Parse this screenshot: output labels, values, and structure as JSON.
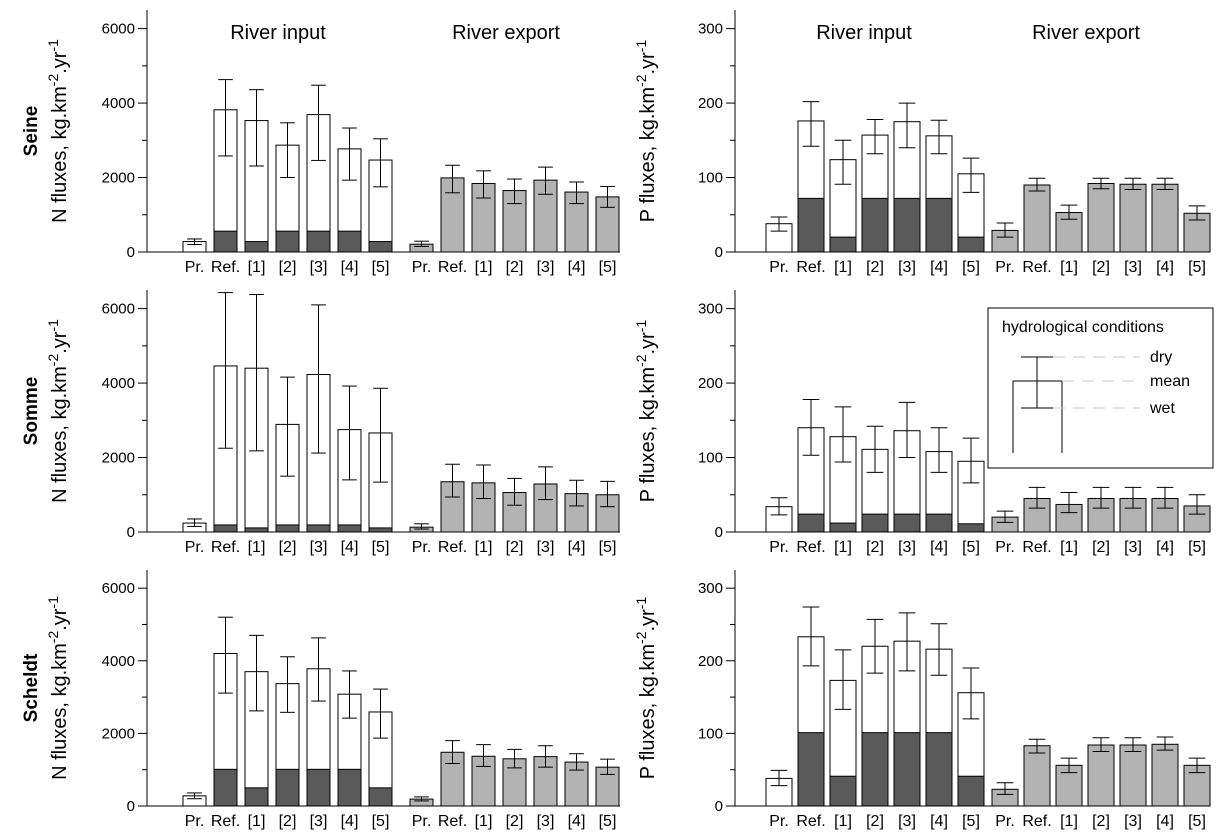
{
  "chart_data": [
    {
      "type": "bar",
      "id": "seine-n",
      "row_label": "Seine",
      "ylabel": "N fluxes, kg.km-2.yr-1",
      "ylim": [
        0,
        6500
      ],
      "yticks": [
        0,
        2000,
        4000,
        6000
      ],
      "group_titles": [
        "River input",
        "River export"
      ],
      "input": {
        "categories": [
          "Pr.",
          "Ref.",
          "[1]",
          "[2]",
          "[3]",
          "[4]",
          "[5]"
        ],
        "total": [
          280,
          3820,
          3530,
          2870,
          3690,
          2770,
          2470
        ],
        "err_low": [
          200,
          2580,
          2310,
          2000,
          2460,
          1930,
          1750
        ],
        "err_high": [
          350,
          4630,
          4360,
          3470,
          4480,
          3330,
          3040
        ],
        "dark": [
          0,
          560,
          280,
          560,
          560,
          560,
          280
        ]
      },
      "export": {
        "categories": [
          "Pr.",
          "Ref.",
          "[1]",
          "[2]",
          "[3]",
          "[4]",
          "[5]"
        ],
        "total": [
          210,
          1990,
          1840,
          1650,
          1930,
          1610,
          1480
        ],
        "err_low": [
          150,
          1590,
          1450,
          1300,
          1550,
          1300,
          1200
        ],
        "err_high": [
          290,
          2330,
          2180,
          1960,
          2280,
          1880,
          1760
        ]
      }
    },
    {
      "type": "bar",
      "id": "seine-p",
      "ylabel": "P fluxes, kg.km-2.yr-1",
      "ylim": [
        0,
        325
      ],
      "yticks": [
        0,
        100,
        200,
        300
      ],
      "group_titles": [
        "River input",
        "River export"
      ],
      "input": {
        "categories": [
          "Pr.",
          "Ref.",
          "[1]",
          "[2]",
          "[3]",
          "[4]",
          "[5]"
        ],
        "total": [
          38,
          176,
          124,
          157,
          175,
          156,
          105
        ],
        "err_low": [
          28,
          142,
          91,
          132,
          140,
          132,
          80
        ],
        "err_high": [
          47,
          202,
          150,
          178,
          200,
          177,
          126
        ],
        "dark": [
          0,
          72,
          20,
          72,
          72,
          72,
          20
        ]
      },
      "export": {
        "categories": [
          "Pr.",
          "Ref.",
          "[1]",
          "[2]",
          "[3]",
          "[4]",
          "[5]"
        ],
        "total": [
          29,
          90,
          53,
          92,
          91,
          91,
          52
        ],
        "err_low": [
          20,
          82,
          44,
          85,
          84,
          84,
          43
        ],
        "err_high": [
          39,
          99,
          63,
          99,
          99,
          99,
          62
        ]
      }
    },
    {
      "type": "bar",
      "id": "somme-n",
      "row_label": "Somme",
      "ylabel": "N fluxes, kg.km-2.yr-1",
      "ylim": [
        0,
        6500
      ],
      "yticks": [
        0,
        2000,
        4000,
        6000
      ],
      "input": {
        "categories": [
          "Pr.",
          "Ref.",
          "[1]",
          "[2]",
          "[3]",
          "[4]",
          "[5]"
        ],
        "total": [
          240,
          4460,
          4400,
          2890,
          4230,
          2750,
          2660
        ],
        "err_low": [
          150,
          2250,
          2180,
          1500,
          2120,
          1400,
          1340
        ],
        "err_high": [
          350,
          6430,
          6380,
          4160,
          6100,
          3920,
          3860
        ],
        "dark": [
          0,
          190,
          110,
          190,
          190,
          190,
          110
        ]
      },
      "export": {
        "categories": [
          "Pr.",
          "Ref.",
          "[1]",
          "[2]",
          "[3]",
          "[4]",
          "[5]"
        ],
        "total": [
          130,
          1350,
          1320,
          1060,
          1290,
          1030,
          1000
        ],
        "err_low": [
          80,
          940,
          900,
          720,
          870,
          700,
          680
        ],
        "err_high": [
          220,
          1820,
          1800,
          1440,
          1750,
          1390,
          1360
        ]
      }
    },
    {
      "type": "bar",
      "id": "somme-p",
      "ylabel": "P fluxes, kg.km-2.yr-1",
      "ylim": [
        0,
        325
      ],
      "yticks": [
        0,
        100,
        200,
        300
      ],
      "input": {
        "categories": [
          "Pr.",
          "Ref.",
          "[1]",
          "[2]",
          "[3]",
          "[4]",
          "[5]"
        ],
        "total": [
          34,
          140,
          128,
          111,
          136,
          108,
          95
        ],
        "err_low": [
          23,
          103,
          94,
          80,
          100,
          80,
          66
        ],
        "err_high": [
          46,
          178,
          168,
          142,
          174,
          140,
          126
        ],
        "dark": [
          0,
          24,
          12,
          24,
          24,
          24,
          11
        ]
      },
      "export": {
        "categories": [
          "Pr.",
          "Ref.",
          "[1]",
          "[2]",
          "[3]",
          "[4]",
          "[5]"
        ],
        "total": [
          20,
          45,
          37,
          45,
          45,
          45,
          35
        ],
        "err_low": [
          13,
          32,
          26,
          32,
          32,
          32,
          24
        ],
        "err_high": [
          28,
          60,
          53,
          60,
          60,
          60,
          50
        ]
      }
    },
    {
      "type": "bar",
      "id": "scheldt-n",
      "row_label": "Scheldt",
      "ylabel": "N fluxes, kg.km-2.yr-1",
      "ylim": [
        0,
        6500
      ],
      "yticks": [
        0,
        2000,
        4000,
        6000
      ],
      "input": {
        "categories": [
          "Pr.",
          "Ref.",
          "[1]",
          "[2]",
          "[3]",
          "[4]",
          "[5]"
        ],
        "total": [
          280,
          4200,
          3700,
          3370,
          3780,
          3080,
          2590
        ],
        "err_low": [
          200,
          3110,
          2620,
          2580,
          2890,
          2420,
          1870
        ],
        "err_high": [
          360,
          5200,
          4700,
          4110,
          4630,
          3720,
          3220
        ],
        "dark": [
          0,
          1010,
          500,
          1010,
          1010,
          1010,
          500
        ]
      },
      "export": {
        "categories": [
          "Pr.",
          "Ref.",
          "[1]",
          "[2]",
          "[3]",
          "[4]",
          "[5]"
        ],
        "total": [
          190,
          1480,
          1370,
          1300,
          1360,
          1210,
          1070
        ],
        "err_low": [
          140,
          1170,
          1090,
          1050,
          1070,
          990,
          870
        ],
        "err_high": [
          250,
          1800,
          1690,
          1560,
          1660,
          1440,
          1290
        ]
      }
    },
    {
      "type": "bar",
      "id": "scheldt-p",
      "ylabel": "P fluxes, kg.km-2.yr-1",
      "ylim": [
        0,
        325
      ],
      "yticks": [
        0,
        100,
        200,
        300
      ],
      "input": {
        "categories": [
          "Pr.",
          "Ref.",
          "[1]",
          "[2]",
          "[3]",
          "[4]",
          "[5]"
        ],
        "total": [
          38,
          233,
          173,
          220,
          227,
          216,
          156
        ],
        "err_low": [
          28,
          193,
          133,
          183,
          186,
          180,
          120
        ],
        "err_high": [
          49,
          274,
          215,
          257,
          266,
          251,
          190
        ],
        "dark": [
          0,
          101,
          41,
          101,
          101,
          101,
          41
        ]
      },
      "export": {
        "categories": [
          "Pr.",
          "Ref.",
          "[1]",
          "[2]",
          "[3]",
          "[4]",
          "[5]"
        ],
        "total": [
          23,
          83,
          56,
          84,
          84,
          85,
          56
        ],
        "err_low": [
          16,
          73,
          46,
          75,
          75,
          77,
          46
        ],
        "err_high": [
          32,
          92,
          66,
          94,
          94,
          95,
          66
        ]
      }
    }
  ],
  "legend": {
    "title": "hydrological conditions",
    "items": [
      "dry",
      "mean",
      "wet"
    ]
  },
  "colors": {
    "input_fill": "#ffffff",
    "dark_fill": "#5a5a5a",
    "export_fill": "#b3b3b3",
    "stroke": "#000000"
  }
}
